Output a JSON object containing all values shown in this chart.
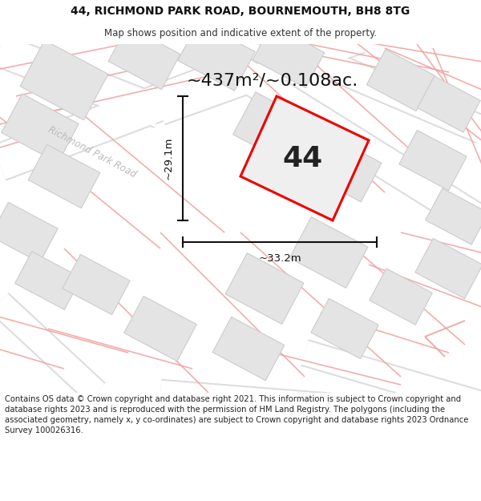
{
  "title_line1": "44, RICHMOND PARK ROAD, BOURNEMOUTH, BH8 8TG",
  "title_line2": "Map shows position and indicative extent of the property.",
  "footer_text": "Contains OS data © Crown copyright and database right 2021. This information is subject to Crown copyright and database rights 2023 and is reproduced with the permission of HM Land Registry. The polygons (including the associated geometry, namely x, y co-ordinates) are subject to Crown copyright and database rights 2023 Ordnance Survey 100026316.",
  "area_label": "~437m²/~0.108ac.",
  "number_label": "44",
  "dim_height": "~29.1m",
  "dim_width": "~33.2m",
  "road_label": "Richmond Park Road",
  "map_bg": "#f0f0f0",
  "property_fill": "#efefef",
  "property_edge": "#ee0000",
  "dim_color": "#111111",
  "pink": "#f0a0a0",
  "building_fill": "#e2e2e2",
  "building_stroke": "#cccccc",
  "title_fontsize": 10,
  "subtitle_fontsize": 8.5,
  "footer_fontsize": 7.2,
  "area_fontsize": 16,
  "number_fontsize": 26,
  "dim_fontsize": 9.5,
  "road_label_fontsize": 8.5
}
